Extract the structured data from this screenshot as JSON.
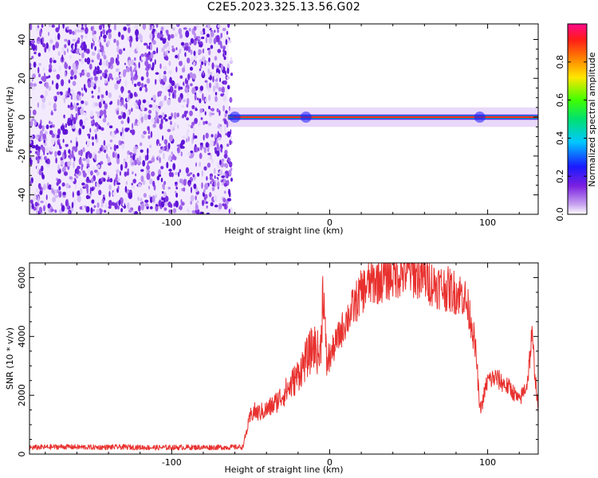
{
  "page_title": "C2E5.2023.325.13.56.G02",
  "chart_data": [
    {
      "type": "heatmap",
      "xlabel": "Height of straight line (km)",
      "ylabel": "Frequency (Hz)",
      "xlim": [
        -190,
        132
      ],
      "ylim": [
        -50,
        48
      ],
      "x_ticks": [
        -100,
        0,
        100
      ],
      "x_tick_labels": [
        "-100",
        "0",
        "100"
      ],
      "y_ticks": [
        -40,
        -20,
        0,
        20,
        40
      ],
      "y_tick_labels": [
        "-40",
        "-20",
        "0",
        "20",
        "40"
      ],
      "grid": false,
      "noise_region_x": [
        -190,
        -64
      ],
      "signal_frequency_hz": 0,
      "signal_band_hz": [
        -1.5,
        1.5
      ],
      "signal_start_x": -64,
      "colorbar": {
        "label": "Normalized spectral amplitude",
        "range": [
          0,
          1
        ],
        "ticks": [
          0.0,
          0.2,
          0.4,
          0.6,
          0.8
        ],
        "tick_labels": [
          "0.0",
          "0.2",
          "0.4",
          "0.6",
          "0.8"
        ]
      }
    },
    {
      "type": "line",
      "xlabel": "Height of straight line (km)",
      "ylabel": "SNR (10 * v/v)",
      "xlim": [
        -190,
        132
      ],
      "ylim": [
        0,
        6500
      ],
      "x_ticks": [
        -100,
        0,
        100
      ],
      "x_tick_labels": [
        "-100",
        "0",
        "100"
      ],
      "y_ticks": [
        0,
        2000,
        4000,
        6000
      ],
      "y_tick_labels": [
        "0",
        "2000",
        "4000",
        "6000"
      ],
      "grid": false,
      "series": [
        {
          "color": "#e8312e",
          "x": [
            -190,
            -170,
            -150,
            -130,
            -110,
            -90,
            -70,
            -55,
            -52,
            -50,
            -48,
            -45,
            -40,
            -35,
            -30,
            -25,
            -20,
            -15,
            -10,
            -6,
            -4,
            -3,
            -2,
            0,
            5,
            10,
            15,
            20,
            25,
            30,
            35,
            40,
            45,
            50,
            55,
            60,
            65,
            70,
            75,
            80,
            85,
            90,
            93,
            95,
            97,
            98,
            100,
            105,
            110,
            115,
            120,
            125,
            128,
            132
          ],
          "y": [
            220,
            250,
            230,
            240,
            220,
            230,
            230,
            240,
            900,
            1300,
            1450,
            1400,
            1500,
            1700,
            2000,
            2300,
            2700,
            3200,
            3700,
            3300,
            5900,
            4200,
            3100,
            3300,
            3900,
            4500,
            5000,
            5500,
            5800,
            5900,
            6000,
            6100,
            6150,
            6200,
            6100,
            6000,
            5800,
            5700,
            5600,
            5500,
            5400,
            4500,
            3200,
            1500,
            1800,
            2100,
            2500,
            2600,
            2400,
            2200,
            1800,
            2400,
            4000,
            1500
          ]
        }
      ]
    }
  ]
}
